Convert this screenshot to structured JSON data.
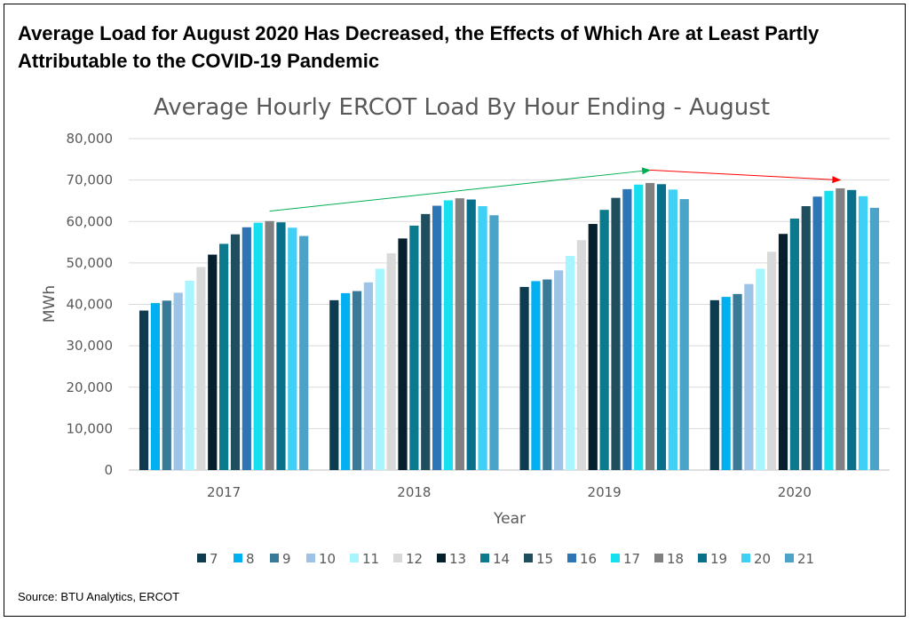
{
  "headline": "Average Load for August 2020 Has Decreased, the Effects of Which Are at Least Partly Attributable to the COVID-19 Pandemic",
  "source": "Source: BTU Analytics, ERCOT",
  "chart_data": {
    "type": "bar",
    "title": "Average Hourly ERCOT Load By Hour Ending - August",
    "xlabel": "Year",
    "ylabel": "MWh",
    "ylim": [
      0,
      80000
    ],
    "yticks": [
      0,
      10000,
      20000,
      30000,
      40000,
      50000,
      60000,
      70000,
      80000
    ],
    "ytick_labels": [
      "0",
      "10,000",
      "20,000",
      "30,000",
      "40,000",
      "50,000",
      "60,000",
      "70,000",
      "80,000"
    ],
    "grid": true,
    "legend_position": "bottom",
    "categories": [
      "2017",
      "2018",
      "2019",
      "2020"
    ],
    "series": [
      {
        "name": "7",
        "color": "#0d3b4f",
        "values": [
          38500,
          41000,
          44200,
          41000
        ]
      },
      {
        "name": "8",
        "color": "#00b0f0",
        "values": [
          40300,
          42700,
          45600,
          41800
        ]
      },
      {
        "name": "9",
        "color": "#3a7a99",
        "values": [
          40900,
          43200,
          46000,
          42500
        ]
      },
      {
        "name": "10",
        "color": "#9dc3e6",
        "values": [
          42800,
          45300,
          48200,
          44900
        ]
      },
      {
        "name": "11",
        "color": "#a6f5ff",
        "values": [
          45700,
          48600,
          51700,
          48600
        ]
      },
      {
        "name": "12",
        "color": "#d9d9d9",
        "values": [
          49000,
          52300,
          55500,
          52700
        ]
      },
      {
        "name": "13",
        "color": "#061f2c",
        "values": [
          52000,
          55900,
          59400,
          57000
        ]
      },
      {
        "name": "14",
        "color": "#0a7a8c",
        "values": [
          54600,
          59000,
          62800,
          60700
        ]
      },
      {
        "name": "15",
        "color": "#1f4e5f",
        "values": [
          56900,
          61800,
          65700,
          63700
        ]
      },
      {
        "name": "16",
        "color": "#2e75b6",
        "values": [
          58600,
          63800,
          67800,
          66000
        ]
      },
      {
        "name": "17",
        "color": "#16e0f0",
        "values": [
          59700,
          65100,
          68900,
          67400
        ]
      },
      {
        "name": "18",
        "color": "#808080",
        "values": [
          60100,
          65600,
          69300,
          68000
        ]
      },
      {
        "name": "19",
        "color": "#0a6f8a",
        "values": [
          59800,
          65300,
          69000,
          67600
        ]
      },
      {
        "name": "20",
        "color": "#3fd0f5",
        "values": [
          58500,
          63700,
          67700,
          66100
        ]
      },
      {
        "name": "21",
        "color": "#4ba3c8",
        "values": [
          56500,
          61500,
          65400,
          63300
        ]
      }
    ],
    "annotations": [
      {
        "type": "arrow",
        "color": "#00b050",
        "from": {
          "category": "2017",
          "series": "18",
          "value": 62500
        },
        "to": {
          "category": "2019",
          "series": "18",
          "value": 72400
        }
      },
      {
        "type": "arrow",
        "color": "#ff0000",
        "from": {
          "category": "2019",
          "series": "18",
          "value": 72400
        },
        "to": {
          "category": "2020",
          "series": "18",
          "value": 70000
        }
      }
    ]
  }
}
